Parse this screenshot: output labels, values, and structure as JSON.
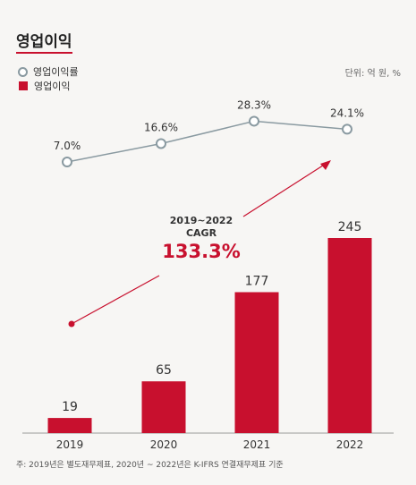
{
  "title": "영업이익",
  "unit": "단위: 억 원, %",
  "legend": {
    "margin_label": "영업이익률",
    "profit_label": "영업이익"
  },
  "colors": {
    "bar": "#c8102e",
    "line": "#8a9aa1",
    "arrow": "#c8102e"
  },
  "cagr": {
    "period": "2019~2022",
    "label": "CAGR",
    "value": "133.3%"
  },
  "footnote": "주: 2019년은 별도재무제표, 2020년 ~ 2022년은 K-IFRS 연결재무제표 기준",
  "chart_data": {
    "type": "bar",
    "categories": [
      "2019",
      "2020",
      "2021",
      "2022"
    ],
    "series": [
      {
        "name": "영업이익",
        "type": "bar",
        "values": [
          19,
          65,
          177,
          245
        ]
      },
      {
        "name": "영업이익률",
        "type": "line",
        "values": [
          7.0,
          16.6,
          28.3,
          24.1
        ],
        "labels": [
          "7.0%",
          "16.6%",
          "28.3%",
          "24.1%"
        ]
      }
    ],
    "bar_labels": [
      "19",
      "65",
      "177",
      "245"
    ],
    "ylim": [
      0,
      270
    ],
    "line_ylim": [
      0,
      100
    ]
  }
}
